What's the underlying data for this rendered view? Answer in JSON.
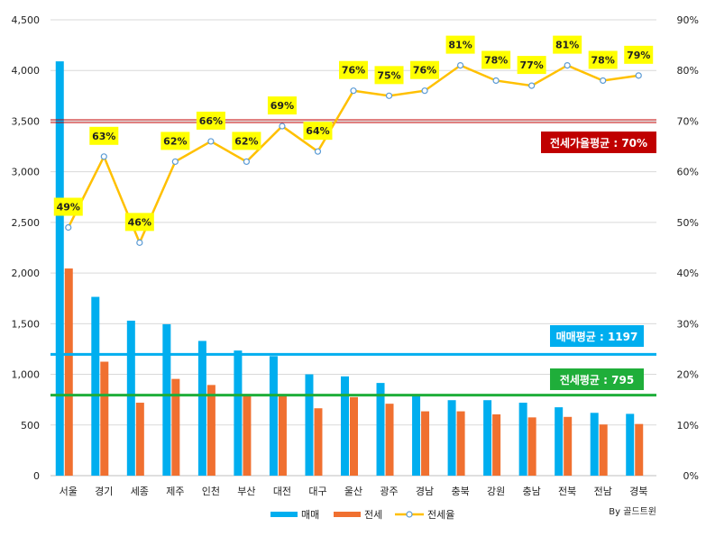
{
  "chart_data": {
    "type": "bar",
    "categories": [
      "서울",
      "경기",
      "세종",
      "제주",
      "인천",
      "부산",
      "대전",
      "대구",
      "울산",
      "광주",
      "경남",
      "충북",
      "강원",
      "충남",
      "전북",
      "전남",
      "경북"
    ],
    "series": [
      {
        "name": "매매",
        "type": "bar",
        "axis": "left",
        "color": "#00aeef",
        "values": [
          4090,
          1765,
          1530,
          1495,
          1330,
          1235,
          1180,
          1000,
          980,
          915,
          790,
          745,
          745,
          720,
          675,
          620,
          610
        ]
      },
      {
        "name": "전세",
        "type": "bar",
        "axis": "left",
        "color": "#f07030",
        "values": [
          2045,
          1125,
          720,
          955,
          895,
          800,
          800,
          665,
          775,
          710,
          635,
          635,
          605,
          575,
          580,
          505,
          510
        ]
      },
      {
        "name": "전세율",
        "type": "line",
        "axis": "right",
        "color": "#ffc000",
        "values": [
          49,
          63,
          46,
          62,
          66,
          62,
          69,
          64,
          76,
          75,
          76,
          81,
          78,
          77,
          81,
          78,
          79
        ],
        "labels": [
          "49%",
          "63%",
          "46%",
          "62%",
          "66%",
          "62%",
          "69%",
          "64%",
          "76%",
          "75%",
          "76%",
          "81%",
          "78%",
          "77%",
          "81%",
          "78%",
          "79%"
        ]
      }
    ],
    "y_left": {
      "min": 0,
      "max": 4500,
      "ticks": [
        0,
        500,
        1000,
        1500,
        2000,
        2500,
        3000,
        3500,
        4000,
        4500
      ],
      "tick_labels": [
        "0",
        "500",
        "1,000",
        "1,500",
        "2,000",
        "2,500",
        "3,000",
        "3,500",
        "4,000",
        "4,500"
      ]
    },
    "y_right": {
      "min": 0,
      "max": 90,
      "ticks": [
        0,
        10,
        20,
        30,
        40,
        50,
        60,
        70,
        80,
        90
      ],
      "tick_labels": [
        "0%",
        "10%",
        "20%",
        "30%",
        "40%",
        "50%",
        "60%",
        "70%",
        "80%",
        "90%"
      ]
    },
    "reference_lines": [
      {
        "label": "전세가율평균 : 70%",
        "axis": "right",
        "value": 70,
        "color": "#c00000",
        "double": true
      },
      {
        "label": "매매평균 : 1197",
        "axis": "left",
        "value": 1197,
        "color": "#00aeef"
      },
      {
        "label": "전세평균 : 795",
        "axis": "left",
        "value": 795,
        "color": "#1fae3a"
      }
    ],
    "legend": {
      "placement": "bottom-center",
      "items": [
        "매매",
        "전세",
        "전세율"
      ]
    },
    "grid": true,
    "credit": "By 골드트윈"
  }
}
